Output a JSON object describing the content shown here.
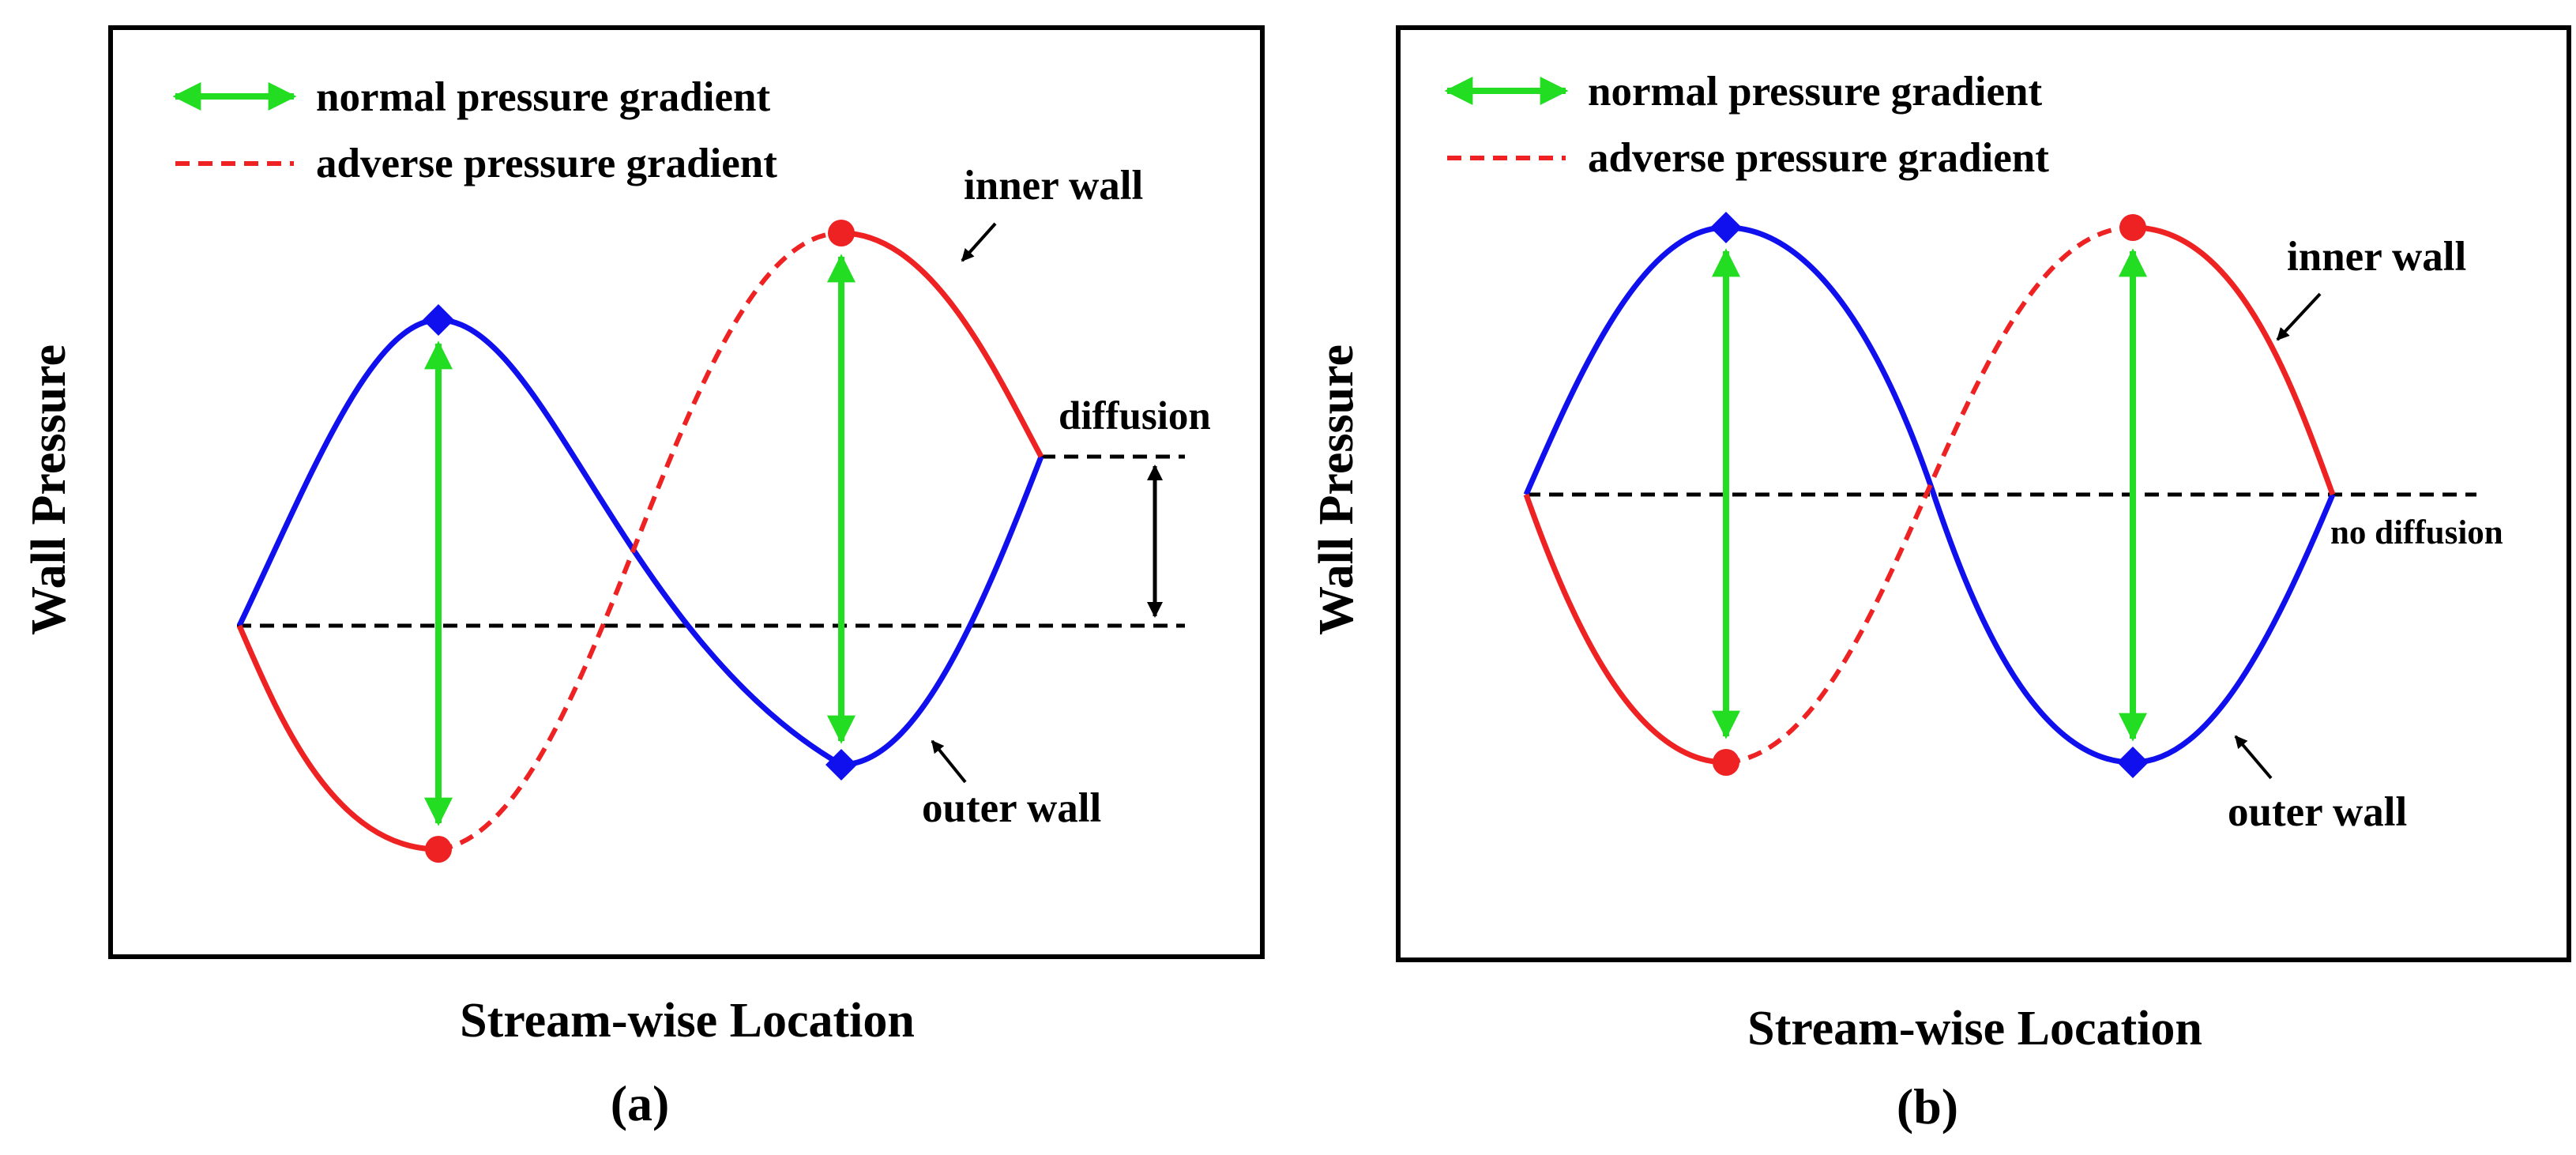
{
  "colors": {
    "normal": "#22dd22",
    "adverse": "#ee2222",
    "inner": "#ee2222",
    "outer": "#1010ee",
    "baseline": "#000000"
  },
  "legend": {
    "normal_label": "normal pressure gradient",
    "adverse_label": "adverse pressure gradient"
  },
  "axes": {
    "ylabel": "Wall Pressure",
    "xlabel": "Stream-wise Location"
  },
  "panel_a": {
    "caption": "(a)",
    "inner_wall": "inner wall",
    "outer_wall": "outer wall",
    "diffusion": "diffusion"
  },
  "panel_b": {
    "caption": "(b)",
    "inner_wall": "inner wall",
    "outer_wall": "outer wall",
    "diffusion": "no diffusion"
  }
}
